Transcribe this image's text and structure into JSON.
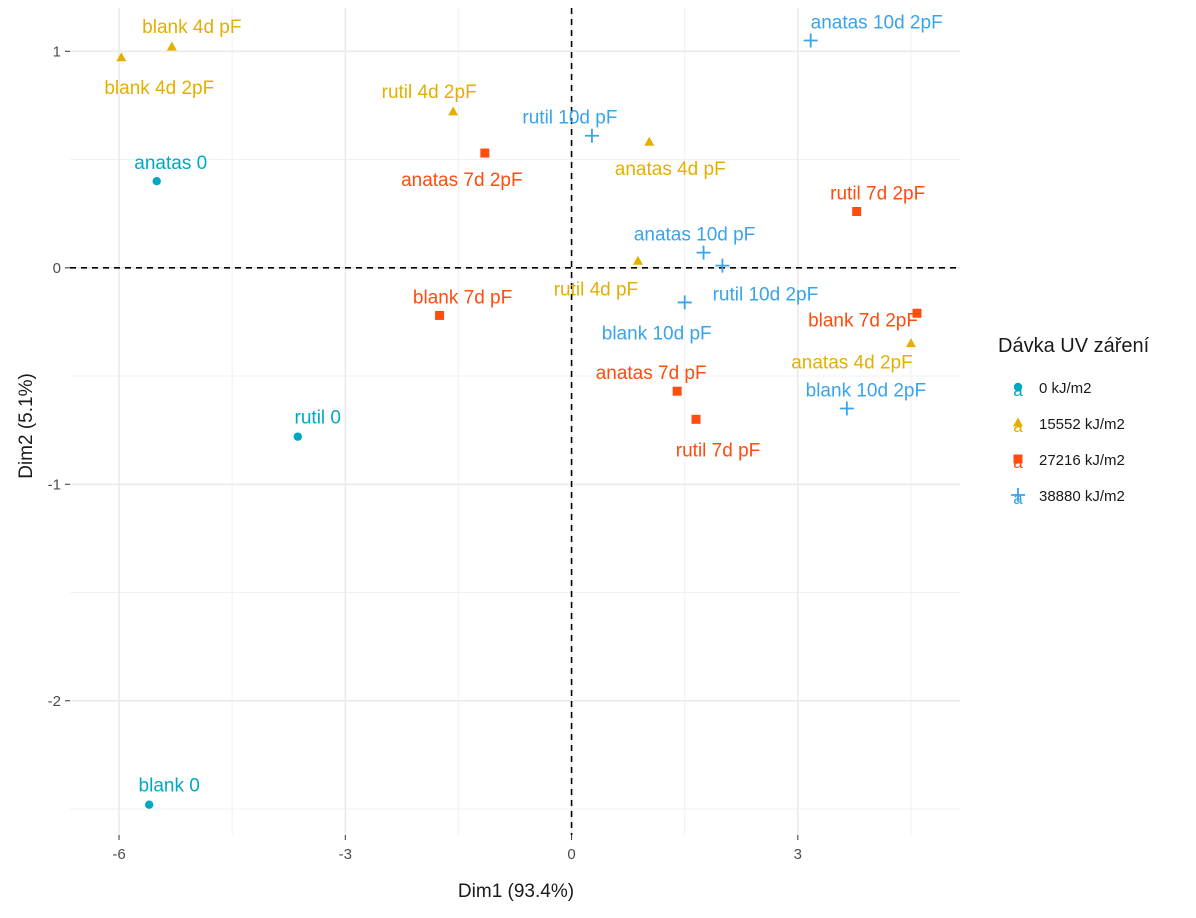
{
  "chart_data": {
    "type": "scatter",
    "xlabel": "Dim1 (93.4%)",
    "ylabel": "Dim2 (5.1%)",
    "xlim": [
      -6.65,
      5.15
    ],
    "ylim": [
      -2.62,
      1.2
    ],
    "x_ticks": [
      -6,
      -3,
      0,
      3
    ],
    "x_tick_labels": [
      "-6",
      "-3",
      "0",
      "3"
    ],
    "y_ticks": [
      -2,
      -1,
      0,
      1
    ],
    "y_tick_labels": [
      "-2",
      "-1",
      "0",
      "1"
    ],
    "grid": true,
    "reference_lines": {
      "x": 0,
      "y": 0,
      "style": "dashed"
    },
    "legend": {
      "title": "Dávka UV záření",
      "position": "right",
      "entries": [
        {
          "label": "0 kJ/m2",
          "color": "#00A9C3",
          "shape": "circle",
          "key_letter": "a"
        },
        {
          "label": "15552 kJ/m2",
          "color": "#E3B000",
          "shape": "triangle",
          "key_letter": "a"
        },
        {
          "label": "27216 kJ/m2",
          "color": "#FF4C0F",
          "shape": "square",
          "key_letter": "a"
        },
        {
          "label": "38880 kJ/m2",
          "color": "#37A4EC",
          "shape": "plus",
          "key_letter": "a"
        }
      ]
    },
    "series": [
      {
        "group": "0 kJ/m2",
        "points": [
          {
            "x": -5.5,
            "y": 0.4,
            "label": "anatas 0"
          },
          {
            "x": -3.63,
            "y": -0.78,
            "label": "rutil 0"
          },
          {
            "x": -5.6,
            "y": -2.48,
            "label": "blank 0"
          }
        ]
      },
      {
        "group": "15552 kJ/m2",
        "points": [
          {
            "x": -5.3,
            "y": 1.02,
            "label": "blank 4d pF"
          },
          {
            "x": -5.97,
            "y": 0.97,
            "label": "blank 4d 2pF"
          },
          {
            "x": -1.57,
            "y": 0.72,
            "label": "rutil 4d 2pF"
          },
          {
            "x": 1.03,
            "y": 0.58,
            "label": "anatas 4d pF"
          },
          {
            "x": 0.88,
            "y": 0.03,
            "label": "rutil 4d pF"
          },
          {
            "x": 4.5,
            "y": -0.35,
            "label": "anatas 4d 2pF"
          }
        ]
      },
      {
        "group": "27216 kJ/m2",
        "points": [
          {
            "x": -1.15,
            "y": 0.53,
            "label": "anatas 7d 2pF"
          },
          {
            "x": 3.78,
            "y": 0.26,
            "label": "rutil 7d 2pF"
          },
          {
            "x": -1.75,
            "y": -0.22,
            "label": "blank 7d pF"
          },
          {
            "x": 4.58,
            "y": -0.21,
            "label": "blank 7d 2pF"
          },
          {
            "x": 1.4,
            "y": -0.57,
            "label": "anatas 7d pF"
          },
          {
            "x": 1.65,
            "y": -0.7,
            "label": "rutil 7d pF"
          }
        ]
      },
      {
        "group": "38880 kJ/m2",
        "points": [
          {
            "x": 3.17,
            "y": 1.05,
            "label": "anatas 10d 2pF"
          },
          {
            "x": 0.27,
            "y": 0.61,
            "label": "rutil 10d pF"
          },
          {
            "x": 1.75,
            "y": 0.07,
            "label": "anatas 10d pF"
          },
          {
            "x": 2.0,
            "y": 0.01,
            "label": "rutil 10d 2pF"
          },
          {
            "x": 1.5,
            "y": -0.16,
            "label": "blank 10d pF"
          },
          {
            "x": 3.65,
            "y": -0.65,
            "label": "blank 10d 2pF"
          }
        ]
      }
    ]
  }
}
